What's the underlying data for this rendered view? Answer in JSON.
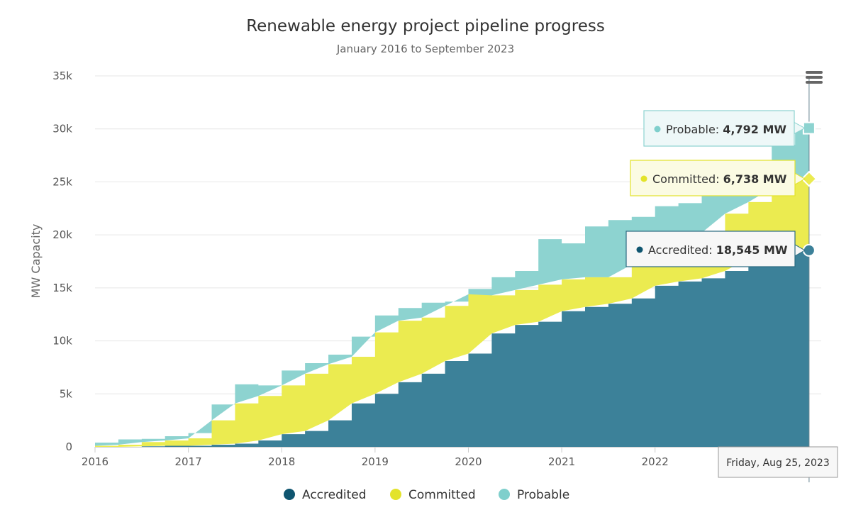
{
  "chart_data": {
    "type": "area",
    "stacked": true,
    "title": "Renewable energy project pipeline progress",
    "subtitle": "January 2016 to September 2023",
    "ylabel": "MW Capacity",
    "xlabel": "",
    "xlim": [
      2016.0,
      2023.78
    ],
    "ylim": [
      0,
      35000
    ],
    "x_ticks": [
      2016,
      2017,
      2018,
      2019,
      2020,
      2021,
      2022,
      2023
    ],
    "x_tick_labels": [
      "2016",
      "2017",
      "2018",
      "2019",
      "2020",
      "2021",
      "2022",
      ""
    ],
    "y_ticks": [
      0,
      5000,
      10000,
      15000,
      20000,
      25000,
      30000,
      35000
    ],
    "y_tick_labels": [
      "0",
      "5k",
      "10k",
      "15k",
      "20k",
      "25k",
      "30k",
      "35k"
    ],
    "grid": true,
    "legend_position": "bottom-center",
    "x": [
      2016.0,
      2016.25,
      2016.5,
      2016.75,
      2017.0,
      2017.25,
      2017.5,
      2017.75,
      2018.0,
      2018.25,
      2018.5,
      2018.75,
      2019.0,
      2019.25,
      2019.5,
      2019.75,
      2020.0,
      2020.25,
      2020.5,
      2020.75,
      2021.0,
      2021.25,
      2021.5,
      2021.75,
      2022.0,
      2022.25,
      2022.5,
      2022.75,
      2023.0,
      2023.25,
      2023.5,
      2023.65
    ],
    "series": [
      {
        "name": "Accredited",
        "color": "#3c8199",
        "legend_color": "#0f5570",
        "values": [
          0,
          0,
          50,
          100,
          100,
          200,
          300,
          600,
          1200,
          1500,
          2500,
          4100,
          5000,
          6100,
          6900,
          8100,
          8800,
          10700,
          11500,
          11800,
          12800,
          13200,
          13500,
          14000,
          15200,
          15600,
          15900,
          16600,
          17800,
          18200,
          18545,
          18545
        ]
      },
      {
        "name": "Committed",
        "color": "#ebeb50",
        "legend_color": "#e3e32a",
        "values": [
          100,
          200,
          400,
          500,
          700,
          2300,
          3800,
          4200,
          4600,
          5400,
          5300,
          4400,
          5800,
          5800,
          5300,
          5200,
          5600,
          3600,
          3300,
          3500,
          3000,
          2800,
          2500,
          3200,
          2300,
          3800,
          4300,
          5400,
          5300,
          6200,
          6738,
          6738
        ]
      },
      {
        "name": "Probable",
        "color": "#8dd3d0",
        "legend_color": "#7fcfcc",
        "values": [
          300,
          500,
          300,
          400,
          500,
          1500,
          1800,
          1000,
          1400,
          1000,
          900,
          1900,
          1600,
          1200,
          1400,
          400,
          500,
          1700,
          1800,
          4300,
          3400,
          4800,
          5400,
          4500,
          5200,
          3600,
          3500,
          3400,
          3800,
          4100,
          4792,
          4792
        ]
      }
    ],
    "tooltip": {
      "date": "Friday, Aug 25, 2023",
      "x": 2023.65,
      "unit": "MW",
      "rows": [
        {
          "series": "Probable",
          "label": "Probable:",
          "value_text": "4,792 MW",
          "value": 4792
        },
        {
          "series": "Committed",
          "label": "Committed:",
          "value_text": "6,738 MW",
          "value": 6738
        },
        {
          "series": "Accredited",
          "label": "Accredited:",
          "value_text": "18,545 MW",
          "value": 18545
        }
      ]
    }
  },
  "menu": {
    "icon": "hamburger-menu-icon",
    "color": "#666666"
  }
}
